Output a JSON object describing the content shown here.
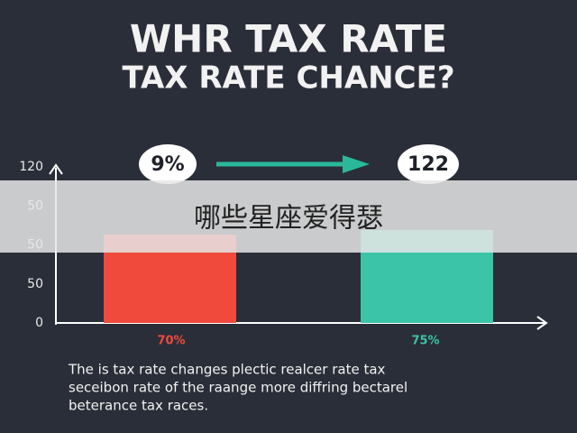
{
  "header": {
    "title": "WHR TAX RATE",
    "subtitle": "TAX RATE CHANCE?"
  },
  "axis": {
    "labels": [
      "120",
      "50",
      "50",
      "50",
      "0"
    ]
  },
  "bubbles": [
    "9%",
    "122"
  ],
  "bars": {
    "labels": [
      "70%",
      "75%"
    ]
  },
  "caption": [
    "The is tax rate changes plectic realcer rate tax",
    "seceibon rate of the raange more diffring bectarel",
    "beterance tax races."
  ],
  "overlay": {
    "text": "哪些星座爱得瑟"
  }
}
